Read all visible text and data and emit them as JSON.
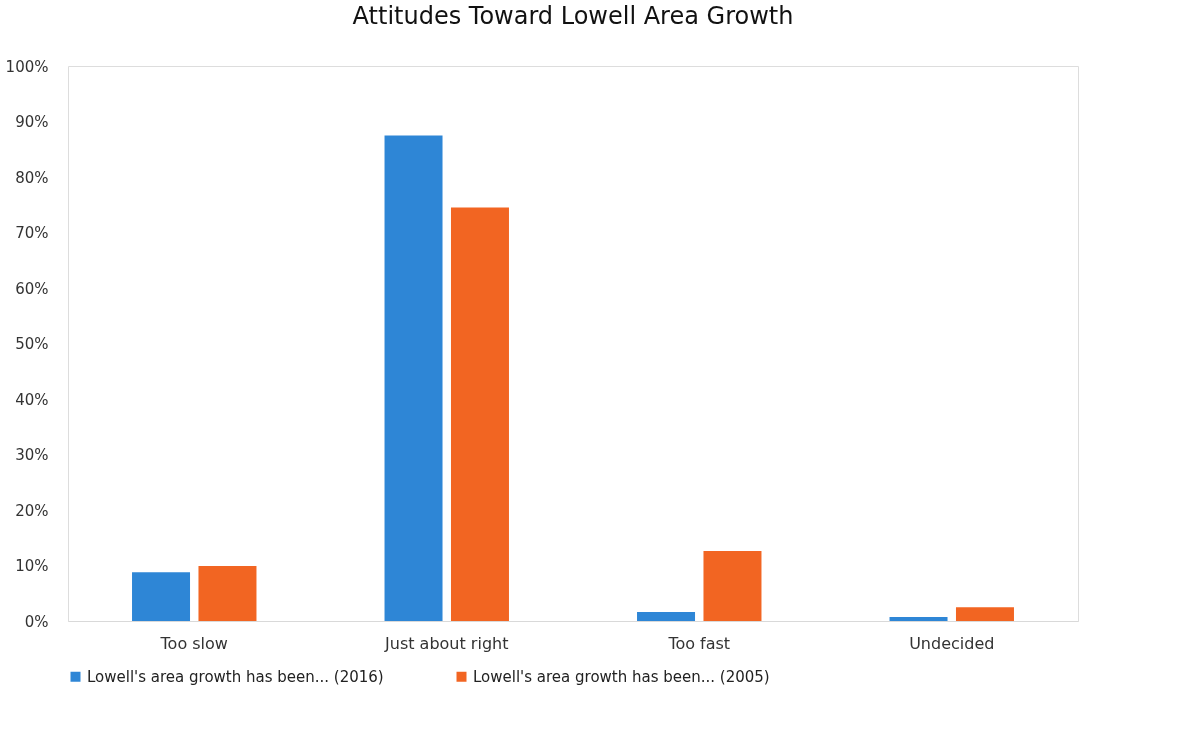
{
  "chart_data": {
    "type": "bar",
    "title": "Attitudes Toward Lowell Area Growth",
    "categories": [
      "Too slow",
      "Just about right",
      "Too fast",
      "Undecided"
    ],
    "series": [
      {
        "name": "Lowell's area growth has been...   (2016)",
        "color": "#2e86d6",
        "values": [
          8.8,
          87.5,
          1.6,
          0.7
        ]
      },
      {
        "name": "Lowell's area growth has been...   (2005)",
        "color": "#f26522",
        "values": [
          9.9,
          74.5,
          12.6,
          2.5
        ]
      }
    ],
    "ylim": [
      0,
      100
    ],
    "yticks": [
      {
        "value": 0,
        "label": "0%"
      },
      {
        "value": 10,
        "label": "10%"
      },
      {
        "value": 20,
        "label": "20%"
      },
      {
        "value": 30,
        "label": "30%"
      },
      {
        "value": 40,
        "label": "40%"
      },
      {
        "value": 50,
        "label": "50%"
      },
      {
        "value": 60,
        "label": "60%"
      },
      {
        "value": 70,
        "label": "70%"
      },
      {
        "value": 80,
        "label": "80%"
      },
      {
        "value": 90,
        "label": "90%"
      },
      {
        "value": 100,
        "label": "100%"
      }
    ],
    "grid": false,
    "legend": "bottom"
  }
}
